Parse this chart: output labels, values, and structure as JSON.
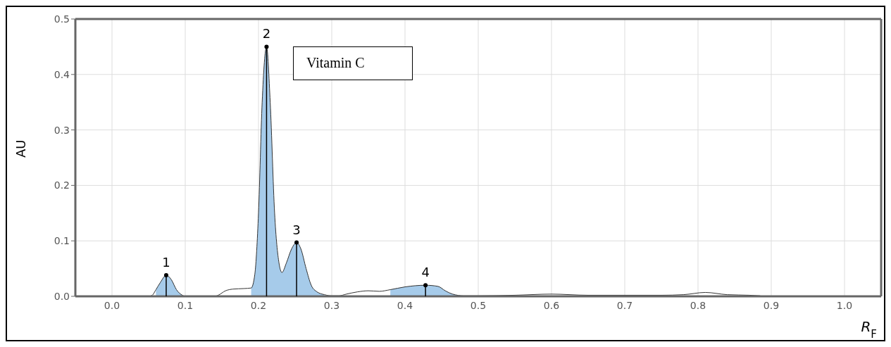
{
  "chart_data": {
    "type": "line",
    "xlabel": "R$_{F}$",
    "ylabel": "AU",
    "x": [
      -0.05,
      0.0,
      0.05,
      0.055,
      0.06,
      0.066,
      0.074,
      0.081,
      0.088,
      0.096,
      0.1,
      0.12,
      0.14,
      0.145,
      0.155,
      0.165,
      0.18,
      0.19,
      0.195,
      0.2,
      0.205,
      0.211,
      0.216,
      0.222,
      0.228,
      0.232,
      0.238,
      0.245,
      0.252,
      0.258,
      0.265,
      0.272,
      0.28,
      0.29,
      0.3,
      0.31,
      0.32,
      0.335,
      0.35,
      0.365,
      0.38,
      0.4,
      0.428,
      0.445,
      0.455,
      0.465,
      0.48,
      0.5,
      0.55,
      0.6,
      0.65,
      0.7,
      0.75,
      0.78,
      0.81,
      0.84,
      0.87,
      0.885
    ],
    "series": [
      {
        "color": "#333333",
        "values": [
          0,
          0,
          0,
          0.002,
          0.012,
          0.025,
          0.038,
          0.03,
          0.012,
          0.002,
          0,
          0,
          0,
          0.002,
          0.01,
          0.013,
          0.014,
          0.015,
          0.04,
          0.15,
          0.35,
          0.45,
          0.35,
          0.15,
          0.06,
          0.043,
          0.06,
          0.085,
          0.097,
          0.085,
          0.05,
          0.02,
          0.008,
          0.003,
          0.001,
          0.001,
          0.004,
          0.008,
          0.01,
          0.009,
          0.012,
          0.017,
          0.02,
          0.018,
          0.01,
          0.004,
          0.001,
          0.001,
          0.002,
          0.004,
          0.002,
          0.002,
          0.002,
          0.003,
          0.007,
          0.003,
          0.002,
          0.001
        ]
      },
      {
        "type": "lollipop",
        "color": "#000000",
        "x": [
          0.074,
          0.211,
          0.252,
          0.428
        ],
        "values": [
          0.038,
          0.45,
          0.097,
          0.02
        ]
      },
      {
        "type": "area",
        "color": "#a6cbea",
        "values": [
          null,
          null,
          null,
          null,
          0.012,
          0.025,
          0.038,
          0.03,
          0.012,
          0.002,
          null,
          null,
          null,
          null,
          null,
          null,
          null,
          0.015,
          0.04,
          0.15,
          0.35,
          0.45,
          0.35,
          0.15,
          0.06,
          0.043,
          0.06,
          0.085,
          0.097,
          0.085,
          0.05,
          0.02,
          0.008,
          0.003,
          null,
          null,
          null,
          null,
          null,
          null,
          0.012,
          0.017,
          0.02,
          0.018,
          0.01,
          0.004,
          0.001,
          null,
          null,
          null,
          null,
          null,
          null,
          null,
          null,
          null,
          null,
          null
        ]
      }
    ],
    "xlim": [
      -0.05,
      1.05
    ],
    "xticks": [
      {
        "value": 0,
        "label": "0.0"
      },
      0.1,
      0.2,
      0.3,
      0.4,
      0.5,
      0.6,
      0.7,
      0.8,
      0.9,
      {
        "value": 1,
        "label": "1.0"
      }
    ],
    "ylim": [
      0,
      0.5
    ],
    "yticks": [
      {
        "value": 0,
        "label": "0.0"
      },
      0.1,
      0.2,
      0.3,
      0.4,
      0.5
    ],
    "grid": true,
    "annotations": [
      {
        "text": "1",
        "x": 0.074,
        "y": 0.038
      },
      {
        "text": "2",
        "x": 0.211,
        "y": 0.45
      },
      {
        "text": "3",
        "x": 0.252,
        "y": 0.097
      },
      {
        "text": "4",
        "x": 0.428,
        "y": 0.02
      },
      "Vitamin C"
    ]
  }
}
